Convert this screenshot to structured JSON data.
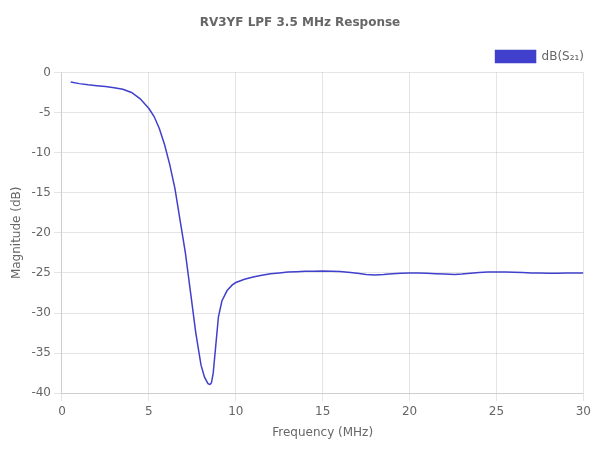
{
  "chart_data": {
    "type": "line",
    "title": "RV3YF LPF 3.5 MHz Response",
    "xlabel": "Frequency (MHz)",
    "ylabel": "Magnitude (dB)",
    "xlim": [
      0,
      30
    ],
    "ylim": [
      -40,
      0
    ],
    "xticks": [
      0,
      5,
      10,
      15,
      20,
      25,
      30
    ],
    "yticks": [
      0,
      -5,
      -10,
      -15,
      -20,
      -25,
      -30,
      -35,
      -40
    ],
    "grid": true,
    "legend": "upper right",
    "x": [
      0.5,
      1.0,
      1.5,
      2.0,
      2.5,
      3.0,
      3.5,
      4.0,
      4.5,
      5.0,
      5.3,
      5.6,
      5.9,
      6.2,
      6.5,
      6.8,
      7.1,
      7.4,
      7.7,
      8.0,
      8.2,
      8.4,
      8.5,
      8.55,
      8.6,
      8.7,
      8.85,
      9.0,
      9.2,
      9.5,
      9.8,
      10.0,
      10.5,
      11.0,
      11.5,
      12.0,
      12.5,
      13.0,
      13.5,
      14.0,
      14.5,
      15.0,
      15.5,
      16.0,
      16.3,
      16.6,
      17.0,
      17.5,
      18.0,
      18.5,
      19.0,
      19.5,
      20.0,
      20.5,
      21.0,
      21.5,
      22.0,
      22.3,
      22.6,
      23.0,
      23.5,
      24.0,
      24.5,
      25.0,
      25.5,
      26.0,
      26.5,
      27.0,
      27.5,
      28.0,
      28.5,
      29.0,
      29.5,
      30.0
    ],
    "series": [
      {
        "name": "dB(S₂₁)",
        "color": "#4040cc",
        "values": [
          -1.2,
          -1.4,
          -1.55,
          -1.65,
          -1.75,
          -1.9,
          -2.1,
          -2.5,
          -3.3,
          -4.5,
          -5.5,
          -7.0,
          -9.0,
          -11.5,
          -14.5,
          -18.5,
          -22.5,
          -27.5,
          -32.5,
          -36.5,
          -38.0,
          -38.8,
          -38.9,
          -38.85,
          -38.7,
          -37.5,
          -34.0,
          -30.5,
          -28.5,
          -27.2,
          -26.5,
          -26.2,
          -25.8,
          -25.5,
          -25.3,
          -25.1,
          -25.0,
          -24.9,
          -24.85,
          -24.8,
          -24.78,
          -24.75,
          -24.78,
          -24.82,
          -24.88,
          -24.95,
          -25.05,
          -25.2,
          -25.25,
          -25.2,
          -25.1,
          -25.05,
          -25.0,
          -25.0,
          -25.05,
          -25.1,
          -25.15,
          -25.18,
          -25.2,
          -25.15,
          -25.05,
          -24.95,
          -24.9,
          -24.88,
          -24.9,
          -24.92,
          -24.95,
          -25.0,
          -25.02,
          -25.05,
          -25.05,
          -25.02,
          -25.0,
          -25.0
        ]
      }
    ]
  }
}
